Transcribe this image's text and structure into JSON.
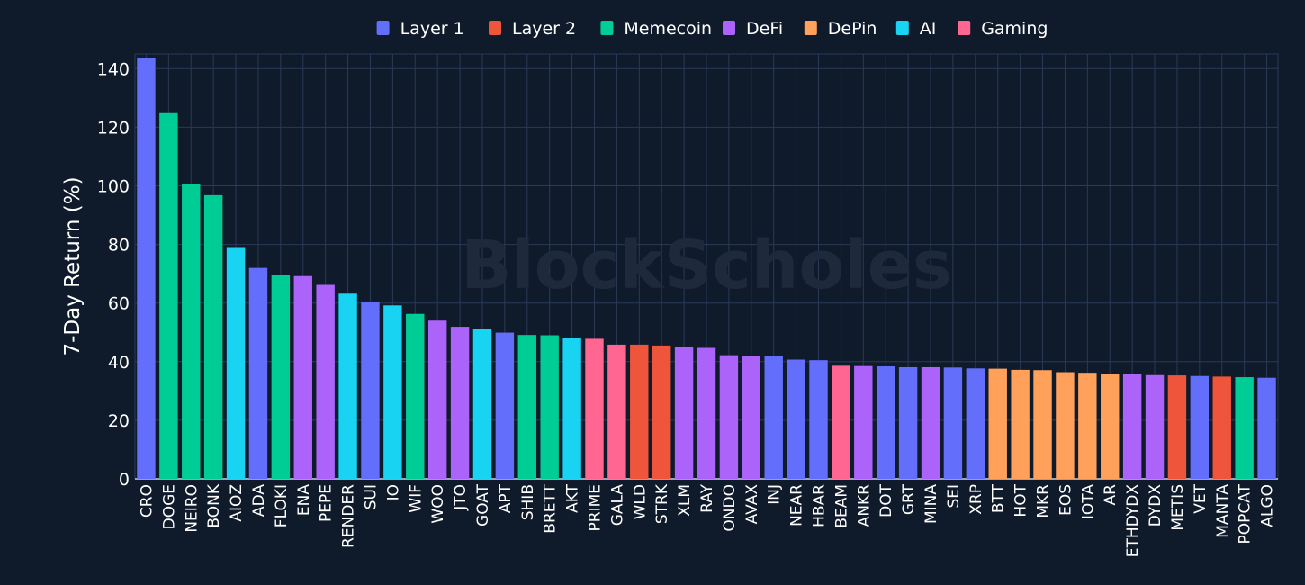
{
  "chart_data": {
    "type": "bar",
    "title": "",
    "xlabel": "",
    "ylabel": "7-Day Return (%)",
    "ylim": [
      0,
      145
    ],
    "yticks": [
      0,
      20,
      40,
      60,
      80,
      100,
      120,
      140
    ],
    "grid": true,
    "legend_position": "top-center",
    "watermark": "BlockScholes",
    "legend": [
      {
        "name": "Layer 1",
        "color": "#636efa"
      },
      {
        "name": "Layer 2",
        "color": "#ef553b"
      },
      {
        "name": "Memecoin",
        "color": "#00cc96"
      },
      {
        "name": "DeFi",
        "color": "#ab63fa"
      },
      {
        "name": "DePin",
        "color": "#ffa15a"
      },
      {
        "name": "AI",
        "color": "#19d3f3"
      },
      {
        "name": "Gaming",
        "color": "#ff6692"
      }
    ],
    "categories": [
      "CRO",
      "DOGE",
      "NEIRO",
      "BONK",
      "AIOZ",
      "ADA",
      "FLOKI",
      "ENA",
      "PEPE",
      "RENDER",
      "SUI",
      "IO",
      "WIF",
      "WOO",
      "JTO",
      "GOAT",
      "APT",
      "SHIB",
      "BRETT",
      "AKT",
      "PRIME",
      "GALA",
      "WLD",
      "STRK",
      "XLM",
      "RAY",
      "ONDO",
      "AVAX",
      "INJ",
      "NEAR",
      "HBAR",
      "BEAM",
      "ANKR",
      "DOT",
      "GRT",
      "MINA",
      "SEI",
      "XRP",
      "BTT",
      "HOT",
      "MKR",
      "EOS",
      "IOTA",
      "AR",
      "ETHDYDX",
      "DYDX",
      "METIS",
      "VET",
      "MANTA",
      "POPCAT",
      "ALGO"
    ],
    "values": [
      143.5,
      124.8,
      100.5,
      96.8,
      78.8,
      72.0,
      69.6,
      69.2,
      66.2,
      63.2,
      60.5,
      59.2,
      56.3,
      54.0,
      51.9,
      51.1,
      49.9,
      49.1,
      49.0,
      48.1,
      47.8,
      45.8,
      45.8,
      45.5,
      45.0,
      44.7,
      42.2,
      42.0,
      41.8,
      40.7,
      40.5,
      38.6,
      38.5,
      38.4,
      38.1,
      38.1,
      38.0,
      37.7,
      37.6,
      37.2,
      37.1,
      36.4,
      36.2,
      35.8,
      35.7,
      35.4,
      35.3,
      35.1,
      34.9,
      34.7,
      34.5
    ],
    "groups": [
      "Layer 1",
      "Memecoin",
      "Memecoin",
      "Memecoin",
      "AI",
      "Layer 1",
      "Memecoin",
      "DeFi",
      "DeFi",
      "AI",
      "Layer 1",
      "AI",
      "Memecoin",
      "DeFi",
      "DeFi",
      "AI",
      "Layer 1",
      "Memecoin",
      "Memecoin",
      "AI",
      "Gaming",
      "Gaming",
      "Layer 2",
      "Layer 2",
      "DeFi",
      "DeFi",
      "DeFi",
      "DeFi",
      "Layer 1",
      "Layer 1",
      "Layer 1",
      "Gaming",
      "DeFi",
      "Layer 1",
      "Layer 1",
      "DeFi",
      "Layer 1",
      "Layer 1",
      "DePin",
      "DePin",
      "DePin",
      "DePin",
      "DePin",
      "DePin",
      "DeFi",
      "DeFi",
      "Layer 2",
      "Layer 1",
      "Layer 2",
      "Memecoin",
      "Layer 1"
    ]
  }
}
